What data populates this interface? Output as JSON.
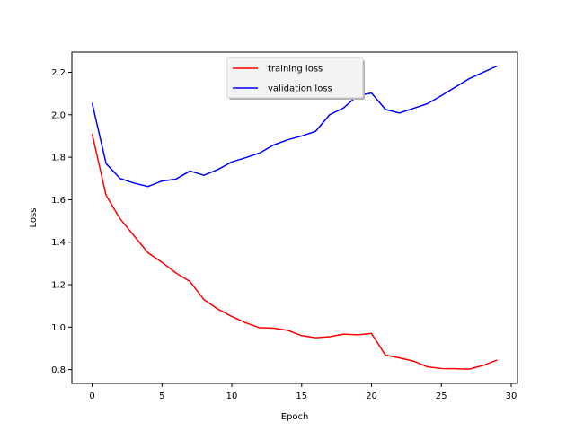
{
  "chart_data": {
    "type": "line",
    "title": "",
    "xlabel": "Epoch",
    "ylabel": "Loss",
    "xlim": [
      -1.45,
      30.45
    ],
    "ylim": [
      0.735,
      2.295
    ],
    "xticks": [
      0,
      5,
      10,
      15,
      20,
      25,
      30
    ],
    "yticks": [
      0.8,
      1.0,
      1.2,
      1.4,
      1.6,
      1.8,
      2.0,
      2.2
    ],
    "grid": false,
    "legend_position": "top-center",
    "x": [
      0,
      1,
      2,
      3,
      4,
      5,
      6,
      7,
      8,
      9,
      10,
      11,
      12,
      13,
      14,
      15,
      16,
      17,
      18,
      19,
      20,
      21,
      22,
      23,
      24,
      25,
      26,
      27,
      28,
      29
    ],
    "series": [
      {
        "name": "training loss",
        "color": "#ff0000",
        "values": [
          1.91,
          1.62,
          1.51,
          1.43,
          1.35,
          1.305,
          1.255,
          1.215,
          1.13,
          1.085,
          1.05,
          1.02,
          0.997,
          0.995,
          0.985,
          0.96,
          0.95,
          0.955,
          0.967,
          0.964,
          0.97,
          0.868,
          0.855,
          0.84,
          0.813,
          0.805,
          0.804,
          0.802,
          0.82,
          0.845
        ]
      },
      {
        "name": "validation loss",
        "color": "#0000ff",
        "values": [
          2.055,
          1.77,
          1.7,
          1.678,
          1.662,
          1.688,
          1.697,
          1.735,
          1.715,
          1.742,
          1.778,
          1.798,
          1.82,
          1.858,
          1.882,
          1.9,
          1.922,
          2.0,
          2.032,
          2.09,
          2.102,
          2.025,
          2.008,
          2.03,
          2.052,
          2.09,
          2.13,
          2.17,
          2.2,
          2.23
        ]
      }
    ]
  }
}
